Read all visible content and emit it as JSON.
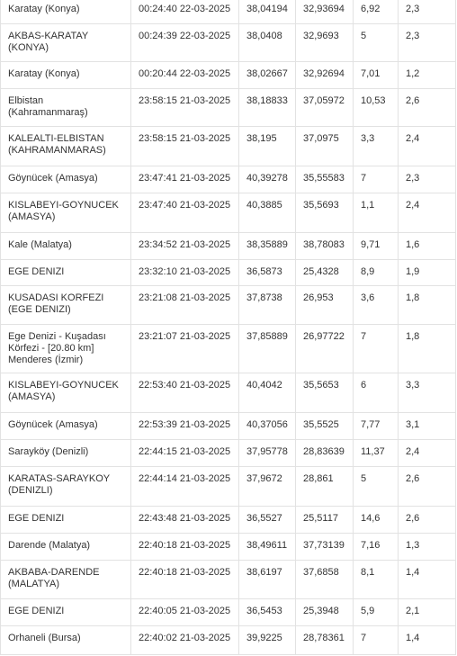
{
  "table": {
    "rows": [
      [
        "Karatay (Konya)",
        "00:24:40 22-03-2025",
        "38,04194",
        "32,93694",
        "6,92",
        "2,3"
      ],
      [
        "AKBAS-KARATAY (KONYA)",
        "00:24:39 22-03-2025",
        "38,0408",
        "32,9693",
        "5",
        "2,3"
      ],
      [
        "Karatay (Konya)",
        "00:20:44 22-03-2025",
        "38,02667",
        "32,92694",
        "7,01",
        "1,2"
      ],
      [
        "Elbistan (Kahramanmaraş)",
        "23:58:15 21-03-2025",
        "38,18833",
        "37,05972",
        "10,53",
        "2,6"
      ],
      [
        "KALEALTI-ELBISTAN (KAHRAMANMARAS)",
        "23:58:15 21-03-2025",
        "38,195",
        "37,0975",
        "3,3",
        "2,4"
      ],
      [
        "Göynücek (Amasya)",
        "23:47:41 21-03-2025",
        "40,39278",
        "35,55583",
        "7",
        "2,3"
      ],
      [
        "KISLABEYI-GOYNUCEK (AMASYA)",
        "23:47:40 21-03-2025",
        "40,3885",
        "35,5693",
        "1,1",
        "2,4"
      ],
      [
        "Kale (Malatya)",
        "23:34:52 21-03-2025",
        "38,35889",
        "38,78083",
        "9,71",
        "1,6"
      ],
      [
        "EGE DENIZI",
        "23:32:10 21-03-2025",
        "36,5873",
        "25,4328",
        "8,9",
        "1,9"
      ],
      [
        "KUSADASI KORFEZI (EGE DENIZI)",
        "23:21:08 21-03-2025",
        "37,8738",
        "26,953",
        "3,6",
        "1,8"
      ],
      [
        "Ege Denizi - Kuşadası Körfezi - [20.80 km] Menderes (İzmir)",
        "23:21:07 21-03-2025",
        "37,85889",
        "26,97722",
        "7",
        "1,8"
      ],
      [
        "KISLABEYI-GOYNUCEK (AMASYA)",
        "22:53:40 21-03-2025",
        "40,4042",
        "35,5653",
        "6",
        "3,3"
      ],
      [
        "Göynücek (Amasya)",
        "22:53:39 21-03-2025",
        "40,37056",
        "35,5525",
        "7,77",
        "3,1"
      ],
      [
        "Sarayköy (Denizli)",
        "22:44:15 21-03-2025",
        "37,95778",
        "28,83639",
        "11,37",
        "2,4"
      ],
      [
        "KARATAS-SARAYKOY (DENIZLI)",
        "22:44:14 21-03-2025",
        "37,9672",
        "28,861",
        "5",
        "2,6"
      ],
      [
        "EGE DENIZI",
        "22:43:48 21-03-2025",
        "36,5527",
        "25,5117",
        "14,6",
        "2,6"
      ],
      [
        "Darende (Malatya)",
        "22:40:18 21-03-2025",
        "38,49611",
        "37,73139",
        "7,16",
        "1,3"
      ],
      [
        "AKBABA-DARENDE (MALATYA)",
        "22:40:18 21-03-2025",
        "38,6197",
        "37,6858",
        "8,1",
        "1,4"
      ],
      [
        "EGE DENIZI",
        "22:40:05 21-03-2025",
        "36,5453",
        "25,3948",
        "5,9",
        "2,1"
      ],
      [
        "Orhaneli (Bursa)",
        "22:40:02 21-03-2025",
        "39,9225",
        "28,78361",
        "7",
        "1,4"
      ]
    ]
  }
}
